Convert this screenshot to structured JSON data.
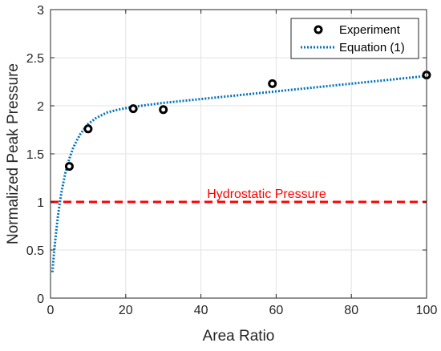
{
  "chart_data": {
    "type": "scatter",
    "xlabel": "Area Ratio",
    "ylabel": "Normalized Peak Pressure",
    "xlim": [
      0,
      100
    ],
    "ylim": [
      0,
      3
    ],
    "xticks": [
      0,
      20,
      40,
      60,
      80,
      100
    ],
    "yticks": [
      0,
      0.5,
      1,
      1.5,
      2,
      2.5,
      3
    ],
    "xtick_labels": [
      "0",
      "20",
      "40",
      "60",
      "80",
      "100"
    ],
    "ytick_labels": [
      "0",
      "0.5",
      "1",
      "1.5",
      "2",
      "2.5",
      "3"
    ],
    "grid": true,
    "legend_position": "top-right",
    "series": [
      {
        "name": "Experiment",
        "kind": "markers",
        "marker": "circle",
        "color": "#000000",
        "x": [
          5,
          10,
          22,
          30,
          59,
          100
        ],
        "y": [
          1.37,
          1.76,
          1.97,
          1.96,
          2.23,
          2.32
        ]
      },
      {
        "name": "Equation (1)",
        "kind": "line",
        "style": "dotted",
        "color": "#0072BD",
        "x": [
          0.5,
          1,
          1.5,
          2,
          2.5,
          3,
          4,
          5,
          6,
          7,
          8,
          10,
          12,
          15,
          18,
          22,
          26,
          30,
          35,
          40,
          45,
          50,
          55,
          60,
          65,
          70,
          75,
          80,
          85,
          90,
          95,
          100
        ],
        "y": [
          0.27,
          0.5,
          0.69,
          0.86,
          1.0,
          1.12,
          1.31,
          1.45,
          1.56,
          1.64,
          1.71,
          1.81,
          1.87,
          1.93,
          1.96,
          1.99,
          2.01,
          2.03,
          2.05,
          2.07,
          2.09,
          2.11,
          2.13,
          2.15,
          2.17,
          2.19,
          2.21,
          2.23,
          2.25,
          2.27,
          2.29,
          2.31
        ]
      }
    ],
    "reference_lines": [
      {
        "label": "Hydrostatic Pressure",
        "y": 1,
        "style": "dashed",
        "color": "#FF0000"
      }
    ],
    "colors": {
      "axis": "#262626",
      "grid": "#e3e3e3",
      "experiment": "#000000",
      "equation": "#0072BD",
      "hydrostatic": "#FF0000"
    }
  }
}
